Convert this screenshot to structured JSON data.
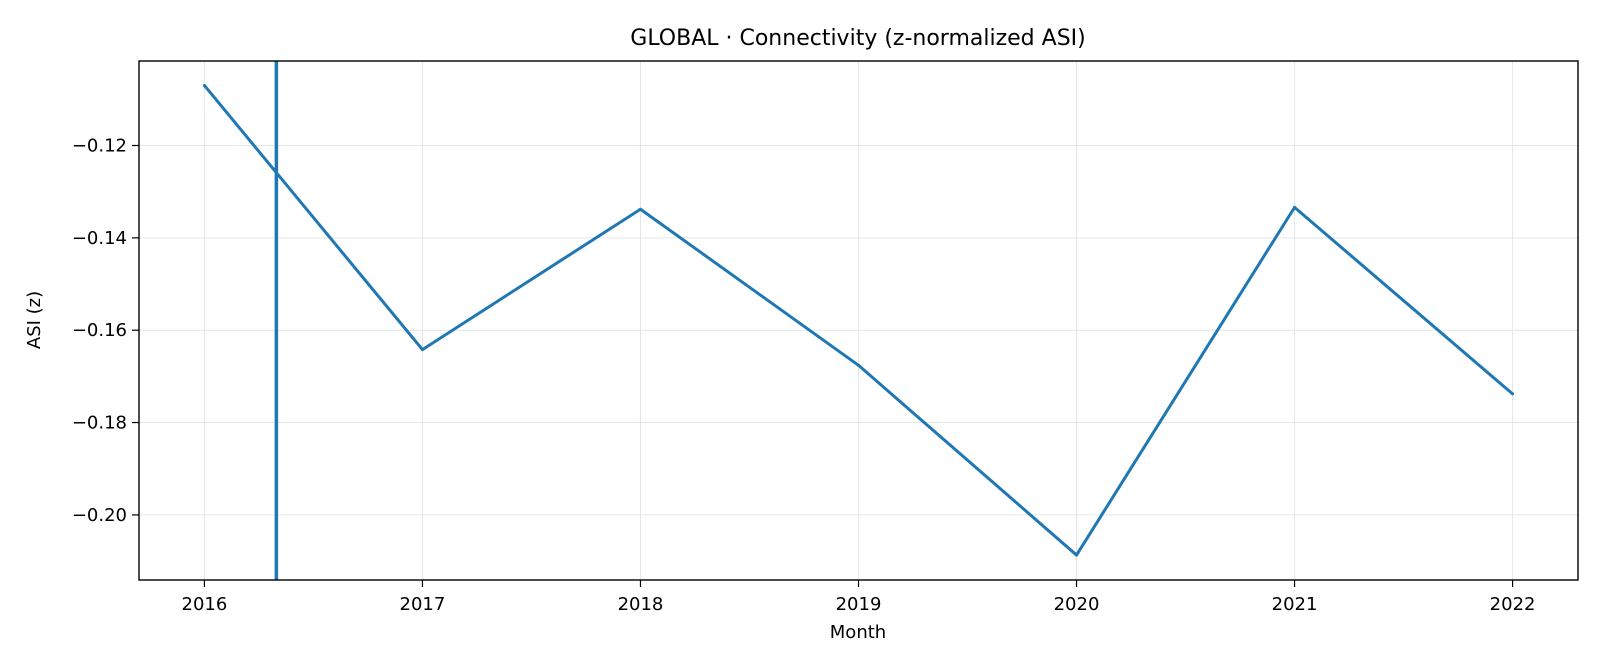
{
  "chart_data": {
    "type": "line",
    "title": "GLOBAL · Connectivity (z-normalized ASI)",
    "xlabel": "Month",
    "ylabel": "ASI (z)",
    "x": [
      2016,
      2017,
      2018,
      2019,
      2020,
      2021,
      2022
    ],
    "series": [
      {
        "name": "ASI (z)",
        "color": "#1f77b4",
        "values": [
          -0.107,
          -0.1642,
          -0.1338,
          -0.1676,
          -0.2087,
          -0.1334,
          -0.1738
        ]
      }
    ],
    "vline": {
      "x": 2016.33,
      "color": "#1f77b4"
    },
    "xlim": [
      2015.7,
      2022.3
    ],
    "ylim": [
      -0.2141,
      -0.1017
    ],
    "xticks": [
      2016,
      2017,
      2018,
      2019,
      2020,
      2021,
      2022
    ],
    "yticks": [
      -0.12,
      -0.14,
      -0.16,
      -0.18,
      -0.2
    ],
    "ytick_labels": [
      "−0.12",
      "−0.14",
      "−0.16",
      "−0.18",
      "−0.20"
    ],
    "grid": true
  }
}
